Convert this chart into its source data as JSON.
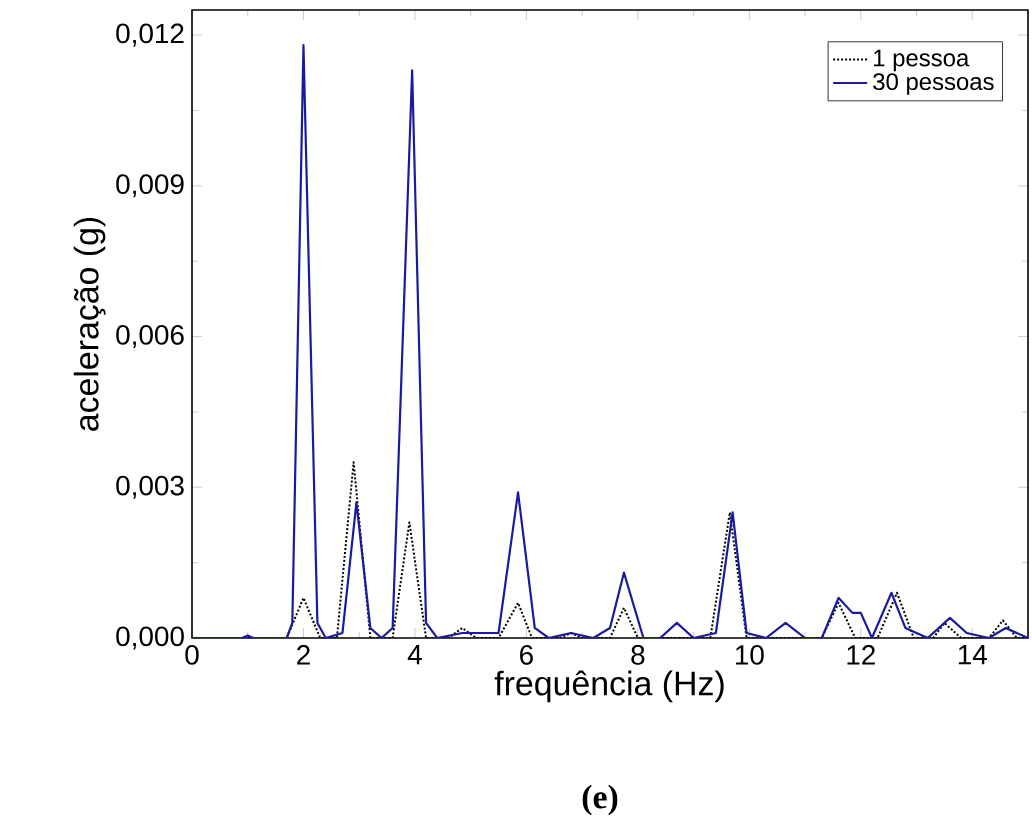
{
  "chart_data": {
    "type": "line",
    "xlabel": "frequência (Hz)",
    "ylabel": "aceleração (g)",
    "annotations": [
      "(e)"
    ],
    "xlim": [
      0,
      15
    ],
    "ylim": [
      0,
      0.0125
    ],
    "xticks": [
      0,
      2,
      4,
      6,
      8,
      10,
      12,
      14
    ],
    "yticks": [
      {
        "value": 0,
        "label": "0,000"
      },
      {
        "value": 0.003,
        "label": "0,003"
      },
      {
        "value": 0.006,
        "label": "0,006"
      },
      {
        "value": 0.009,
        "label": "0,009"
      },
      {
        "value": 0.012,
        "label": "0,012"
      }
    ],
    "grid": false,
    "legend": "top right",
    "marker": "none",
    "series": [
      {
        "name": "1 pessoa",
        "color": "#000000",
        "line_style": "dotted",
        "x": [
          0,
          1.7,
          2.0,
          2.3,
          2.6,
          2.9,
          3.2,
          3.6,
          3.9,
          4.2,
          4.6,
          4.85,
          5.1,
          5.5,
          5.85,
          6.1,
          6.6,
          6.8,
          7.0,
          7.5,
          7.75,
          8.0,
          9.3,
          9.65,
          9.95,
          11.3,
          11.6,
          11.9,
          12.3,
          12.65,
          12.95,
          13.3,
          13.5,
          13.8,
          14.3,
          14.55,
          14.8,
          15
        ],
        "values": [
          0,
          0,
          0.0008,
          0,
          0,
          0.0035,
          0,
          0,
          0.0023,
          0,
          0,
          0.0002,
          0,
          0,
          0.0007,
          0,
          0,
          0.0001,
          0,
          0,
          0.0006,
          0,
          0,
          0.0025,
          0,
          0,
          0.0007,
          0,
          0,
          0.0009,
          0,
          0,
          0.0003,
          0,
          0,
          0.00035,
          0,
          0
        ]
      },
      {
        "name": "30 pessoas",
        "color": "#1a1aa0",
        "line_style": "solid",
        "x": [
          0,
          0.9,
          1.0,
          1.1,
          1.7,
          1.8,
          2.0,
          2.25,
          2.4,
          2.7,
          2.95,
          3.2,
          3.4,
          3.6,
          3.95,
          4.2,
          4.4,
          4.85,
          5.0,
          5.5,
          5.85,
          6.15,
          6.4,
          6.8,
          7.2,
          7.5,
          7.75,
          8.1,
          8.4,
          8.7,
          9.0,
          9.4,
          9.7,
          9.95,
          10.3,
          10.65,
          11.0,
          11.3,
          11.6,
          11.85,
          12.0,
          12.2,
          12.55,
          12.8,
          13.2,
          13.6,
          13.9,
          14.3,
          14.6,
          15
        ],
        "values": [
          0,
          0,
          5e-05,
          0,
          0,
          0.0003,
          0.0118,
          0.0003,
          0,
          0.0001,
          0.0027,
          0.0002,
          0,
          0.0002,
          0.0113,
          0.0003,
          0,
          0.0001,
          0.0001,
          0.0001,
          0.0029,
          0.0002,
          0,
          0.0001,
          0,
          0.0002,
          0.0013,
          0,
          0,
          0.0003,
          0,
          0.0001,
          0.0025,
          0.0001,
          0,
          0.0003,
          0,
          0,
          0.0008,
          0.0005,
          0.0005,
          0,
          0.0009,
          0.0002,
          0,
          0.0004,
          0.0001,
          0,
          0.0002,
          0
        ]
      }
    ]
  }
}
